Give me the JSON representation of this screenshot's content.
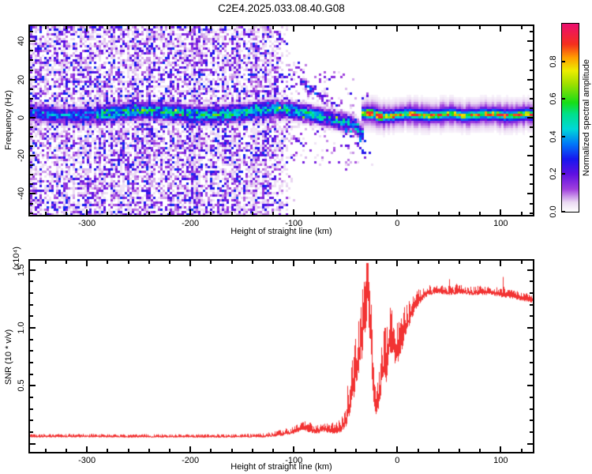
{
  "title": "C2E4.2025.033.08.40.G08",
  "colors": {
    "axis": "#000000",
    "snr_line": "#f23333",
    "background": "#ffffff"
  },
  "chart_data": [
    {
      "type": "heatmap",
      "name": "doppler-spectrogram",
      "xlabel": "Height of straight line (km)",
      "ylabel": "Frequency (Hz)",
      "xlim": [
        -355,
        131
      ],
      "ylim": [
        -51,
        48
      ],
      "x_major_ticks": [
        -300,
        -200,
        -100,
        0,
        100
      ],
      "x_tick_labels": [
        "-300",
        "-200",
        "-100",
        "0",
        "100"
      ],
      "x_minor_step": 20,
      "y_major_ticks": [
        -40,
        -20,
        0,
        20,
        40
      ],
      "y_tick_labels": [
        "-40",
        "-20",
        "0",
        "20",
        "40"
      ],
      "y_minor_step": 5,
      "grid": false,
      "colorbar": {
        "label": "Normalized spectral amplitude",
        "range": [
          0,
          1
        ],
        "ticks": [
          0.0,
          0.2,
          0.4,
          0.6,
          0.8
        ],
        "tick_labels": [
          "0.0",
          "0.2",
          "0.4",
          "0.6",
          "0.8"
        ],
        "stops": [
          [
            0.0,
            "#ffffff"
          ],
          [
            0.05,
            "#ead9f2"
          ],
          [
            0.12,
            "#a03fdd"
          ],
          [
            0.2,
            "#5f10e2"
          ],
          [
            0.28,
            "#1717ef"
          ],
          [
            0.36,
            "#0077f8"
          ],
          [
            0.44,
            "#00d8d8"
          ],
          [
            0.52,
            "#00e08a"
          ],
          [
            0.58,
            "#17dd17"
          ],
          [
            0.68,
            "#a0e000"
          ],
          [
            0.75,
            "#eded00"
          ],
          [
            0.82,
            "#ff9d00"
          ],
          [
            0.89,
            "#f52f1d"
          ],
          [
            1.0,
            "#eb0e6f"
          ]
        ]
      },
      "features": {
        "speckle": {
          "full_until_km": -125,
          "fade_to_km": -98,
          "density": 0.8,
          "max_value": 0.31
        },
        "cone_noise": {
          "x_start": -125,
          "x_end": -22,
          "half_width_hz": 26,
          "max_prob": 0.3
        },
        "band": {
          "x_end": -33,
          "center_hz": 3,
          "descend_start_km": -120,
          "descend_rate": 0.075,
          "dive_start_km": -42,
          "dive_rate": 0.5,
          "width_hz": 3.6,
          "strong_from_km": -290,
          "strong_to_km": -128,
          "base_value": 0.5,
          "weak_value": 0.36
        },
        "arc": {
          "x_start": -93,
          "x_end": -52,
          "freq_start_hz": 19,
          "freq_end_hz": 6,
          "value": 0.3
        },
        "tail": {
          "x_start": -50,
          "x_end": -26,
          "depth_hz": 26,
          "value": 0.4
        },
        "line": {
          "x_start": -34,
          "center_hz": 1.4,
          "core_value": 0.97,
          "core_width_hz": 1.5,
          "mid_width_hz": 3.1,
          "fringe_width_hz": 6.3,
          "knots": [
            [
              -30,
              -24
            ],
            [
              -21,
              -14
            ]
          ]
        }
      }
    },
    {
      "type": "line",
      "name": "snr-profile",
      "xlabel": "Height of straight line (km)",
      "ylabel": "SNR (10 * v/v)",
      "y_multiplier_label": "(x10⁴)",
      "xlim": [
        -355,
        131
      ],
      "ylim": [
        -0.07,
        1.58
      ],
      "x_major_ticks": [
        -300,
        -200,
        -100,
        0,
        100
      ],
      "x_tick_labels": [
        "-300",
        "-200",
        "-100",
        "0",
        "100"
      ],
      "x_minor_step": 20,
      "y_major_ticks": [
        0,
        0.5,
        1.0,
        1.5
      ],
      "y_tick_labels": [
        "",
        "0.5",
        "1.0",
        "1.5"
      ],
      "y_minor_step": 0.1,
      "grid": false,
      "envelope": [
        [
          -355,
          0.06
        ],
        [
          -300,
          0.062
        ],
        [
          -260,
          0.058
        ],
        [
          -220,
          0.06
        ],
        [
          -180,
          0.058
        ],
        [
          -150,
          0.06
        ],
        [
          -130,
          0.062
        ],
        [
          -115,
          0.075
        ],
        [
          -105,
          0.09
        ],
        [
          -97,
          0.11
        ],
        [
          -90,
          0.13
        ],
        [
          -84,
          0.11
        ],
        [
          -78,
          0.1
        ],
        [
          -72,
          0.12
        ],
        [
          -66,
          0.11
        ],
        [
          -60,
          0.1
        ],
        [
          -55,
          0.12
        ],
        [
          -50,
          0.18
        ],
        [
          -47,
          0.28
        ],
        [
          -44,
          0.4
        ],
        [
          -41,
          0.55
        ],
        [
          -38,
          0.72
        ],
        [
          -35,
          0.85
        ],
        [
          -32,
          1.05
        ],
        [
          -29,
          1.3
        ],
        [
          -27,
          1.05
        ],
        [
          -25,
          0.7
        ],
        [
          -23,
          0.42
        ],
        [
          -21,
          0.25
        ],
        [
          -19,
          0.32
        ],
        [
          -17,
          0.45
        ],
        [
          -15,
          0.6
        ],
        [
          -13,
          0.68
        ],
        [
          -11,
          0.62
        ],
        [
          -9,
          0.78
        ],
        [
          -7,
          0.88
        ],
        [
          -5,
          0.84
        ],
        [
          -3,
          0.78
        ],
        [
          -1,
          0.74
        ],
        [
          1,
          0.78
        ],
        [
          3,
          0.84
        ],
        [
          5,
          0.9
        ],
        [
          8,
          1.0
        ],
        [
          12,
          1.08
        ],
        [
          16,
          1.16
        ],
        [
          20,
          1.22
        ],
        [
          25,
          1.27
        ],
        [
          30,
          1.3
        ],
        [
          40,
          1.31
        ],
        [
          50,
          1.3
        ],
        [
          60,
          1.31
        ],
        [
          70,
          1.3
        ],
        [
          80,
          1.3
        ],
        [
          90,
          1.3
        ],
        [
          100,
          1.28
        ],
        [
          110,
          1.27
        ],
        [
          120,
          1.25
        ],
        [
          131,
          1.23
        ]
      ],
      "noise_amp": [
        [
          -355,
          0.02
        ],
        [
          -150,
          0.02
        ],
        [
          -120,
          0.03
        ],
        [
          -100,
          0.05
        ],
        [
          -85,
          0.06
        ],
        [
          -70,
          0.05
        ],
        [
          -55,
          0.08
        ],
        [
          -50,
          0.12
        ],
        [
          -46,
          0.2
        ],
        [
          -42,
          0.3
        ],
        [
          -38,
          0.42
        ],
        [
          -34,
          0.5
        ],
        [
          -30,
          0.55
        ],
        [
          -27,
          0.45
        ],
        [
          -24,
          0.3
        ],
        [
          -21,
          0.15
        ],
        [
          -18,
          0.22
        ],
        [
          -14,
          0.3
        ],
        [
          -10,
          0.32
        ],
        [
          -6,
          0.28
        ],
        [
          -2,
          0.25
        ],
        [
          2,
          0.24
        ],
        [
          6,
          0.2
        ],
        [
          10,
          0.17
        ],
        [
          14,
          0.13
        ],
        [
          18,
          0.1
        ],
        [
          25,
          0.07
        ],
        [
          35,
          0.055
        ],
        [
          131,
          0.05
        ]
      ],
      "spikes": [
        [
          -48,
          0.5
        ],
        [
          -44,
          0.72
        ],
        [
          -36,
          1.05
        ],
        [
          -33,
          1.22
        ],
        [
          -31,
          1.4
        ],
        [
          -29,
          1.53
        ],
        [
          -27,
          1.32
        ],
        [
          -12,
          1.0
        ],
        [
          -6,
          1.12
        ],
        [
          50,
          1.42
        ],
        [
          57,
          1.38
        ],
        [
          102,
          1.44
        ]
      ]
    }
  ]
}
